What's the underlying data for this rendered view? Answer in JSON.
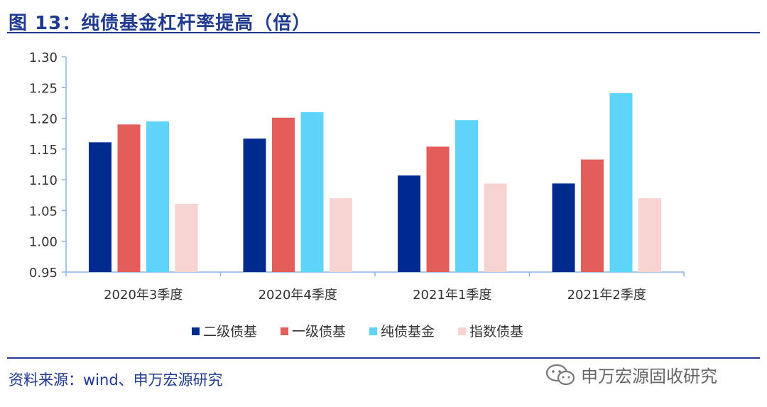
{
  "header": {
    "title": "图 13：纯债基金杠杆率提高（倍）"
  },
  "footer": {
    "source": "资料来源：wind、申万宏源研究"
  },
  "watermark": {
    "text": "申万宏源固收研究",
    "icon": "wechat-icon"
  },
  "colors": {
    "accent": "#1f3a8f"
  },
  "chart_data": {
    "type": "bar",
    "categories": [
      "2020年3季度",
      "2020年4季度",
      "2021年1季度",
      "2021年2季度"
    ],
    "series": [
      {
        "name": "二级债基",
        "color": "#002b8e",
        "values": [
          1.161,
          1.167,
          1.107,
          1.094
        ]
      },
      {
        "name": "一级债基",
        "color": "#e35d5b",
        "values": [
          1.19,
          1.201,
          1.154,
          1.133
        ]
      },
      {
        "name": "纯债基金",
        "color": "#5fd3f9",
        "values": [
          1.195,
          1.21,
          1.197,
          1.241
        ]
      },
      {
        "name": "指数债基",
        "color": "#f7d3d1",
        "values": [
          1.061,
          1.07,
          1.094,
          1.07
        ]
      }
    ],
    "yticks": [
      "0.95",
      "1.00",
      "1.05",
      "1.10",
      "1.15",
      "1.20",
      "1.25",
      "1.30"
    ],
    "ylim": [
      0.95,
      1.3
    ],
    "grid": false,
    "legend_position": "bottom"
  }
}
